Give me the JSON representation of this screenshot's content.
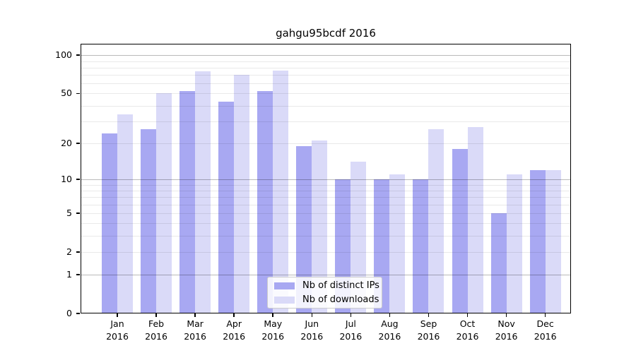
{
  "figure": {
    "title": "gahgu95bcdf 2016",
    "background_color": "#ffffff"
  },
  "chart_data": {
    "type": "bar",
    "title": "gahgu95bcdf 2016",
    "categories": [
      "Jan",
      "Feb",
      "Mar",
      "Apr",
      "May",
      "Jun",
      "Jul",
      "Aug",
      "Sep",
      "Oct",
      "Nov",
      "Dec"
    ],
    "x_tick_year_label": "2016",
    "series": [
      {
        "name": "Nb of distinct IPs",
        "color": "#a8a8f2",
        "values": [
          24,
          26,
          52,
          43,
          52,
          19,
          10,
          10,
          10,
          18,
          5,
          12
        ]
      },
      {
        "name": "Nb of downloads",
        "color": "#dadaf8",
        "values": [
          34,
          50,
          75,
          70,
          76,
          21,
          14,
          11,
          26,
          27,
          11,
          12
        ]
      }
    ],
    "y_axis": {
      "scale": "log1p",
      "tick_labels": [
        "0",
        "1",
        "2",
        "5",
        "10",
        "20",
        "50",
        "100"
      ],
      "tick_values": [
        0,
        1,
        2,
        5,
        10,
        20,
        50,
        100
      ],
      "max_value": 123,
      "major_gridline_values": [
        1,
        10,
        100
      ],
      "minor_gridline_values": [
        2,
        3,
        4,
        5,
        6,
        7,
        8,
        9,
        20,
        30,
        40,
        50,
        60,
        70,
        80,
        90
      ]
    },
    "legend": {
      "position": "bottom-center",
      "entries": [
        "Nb of distinct IPs",
        "Nb of downloads"
      ]
    },
    "grid": true,
    "colors": {
      "distinct_ips": "#a8a8f2",
      "downloads": "#dadaf8",
      "spine": "#000000",
      "legend_border": "#cccccc"
    }
  }
}
